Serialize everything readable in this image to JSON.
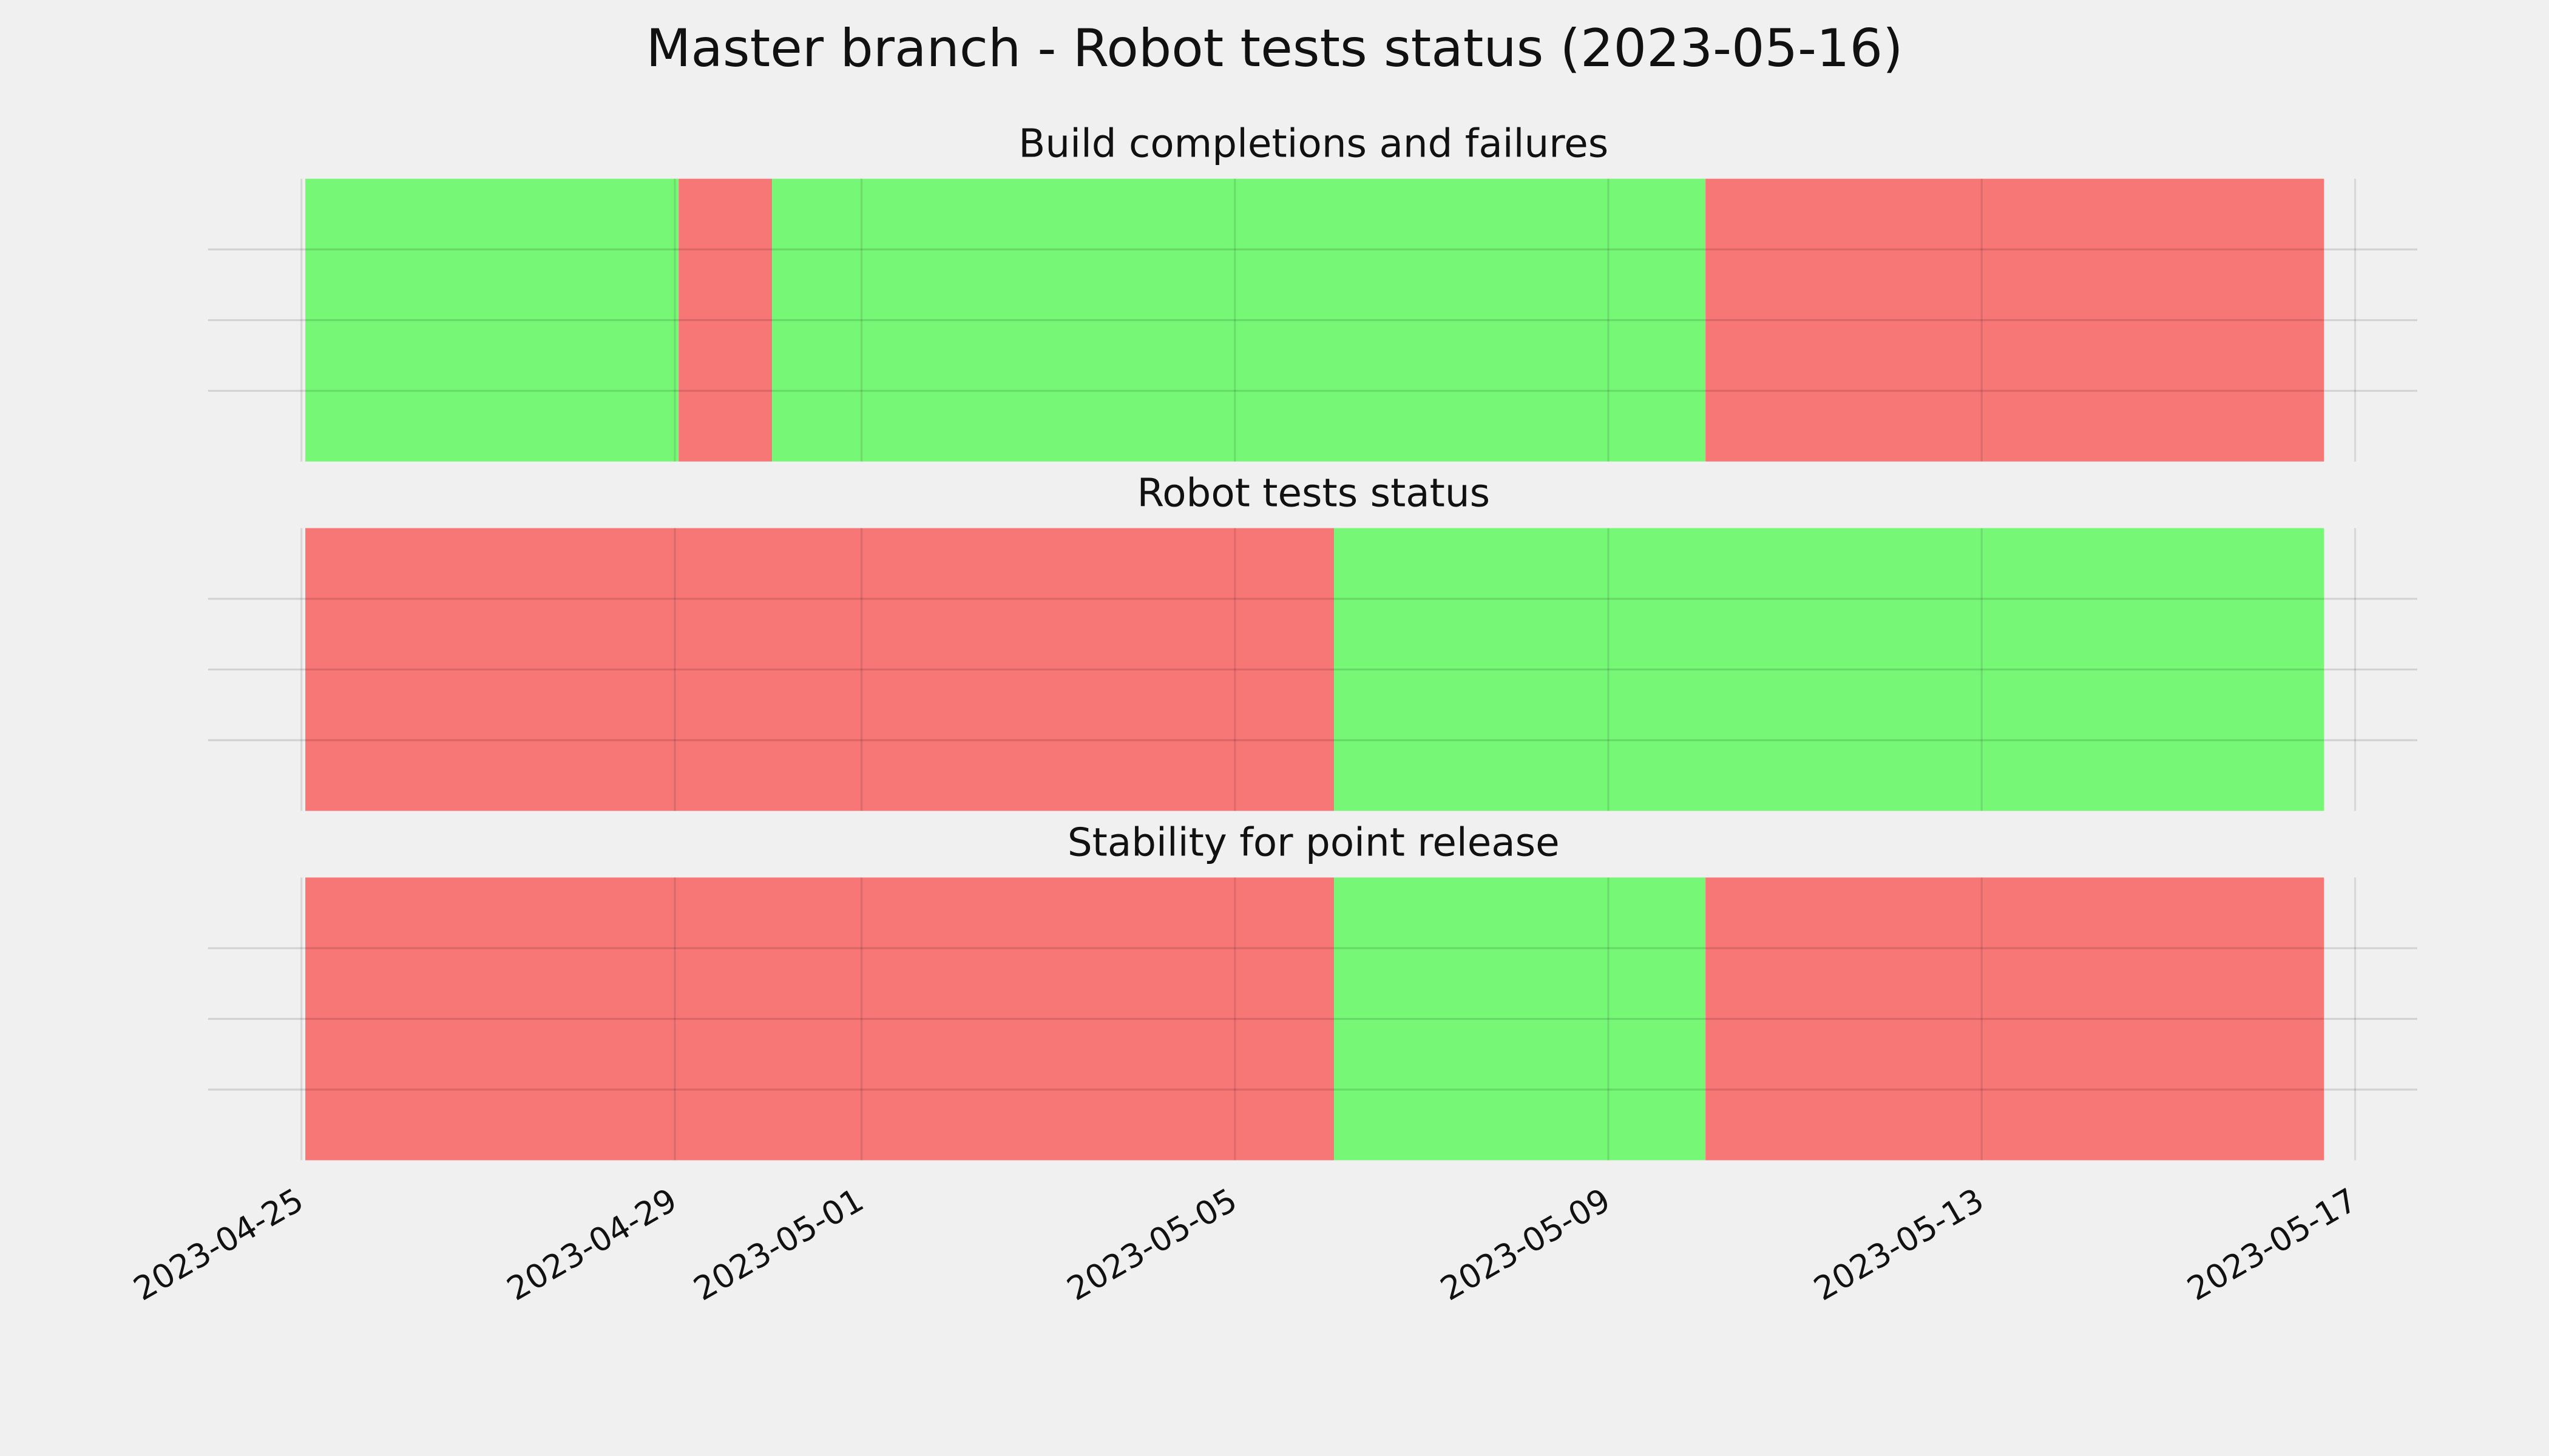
{
  "chart_data": {
    "type": "timeline",
    "title": "Master branch - Robot tests status (2023-05-16)",
    "xlim": [
      "2023-04-24T00:00",
      "2023-05-17T16:00"
    ],
    "xticks": [
      "2023-04-25",
      "2023-04-29",
      "2023-05-01",
      "2023-05-05",
      "2023-05-09",
      "2023-05-13",
      "2023-05-17"
    ],
    "grid": true,
    "panels": [
      {
        "title": "Build completions and failures",
        "spans": [
          {
            "start": "2023-04-25T01:00",
            "end": "2023-04-29T01:00",
            "color": "#76f776"
          },
          {
            "start": "2023-04-29T01:00",
            "end": "2023-04-30T01:00",
            "color": "#f77676"
          },
          {
            "start": "2023-04-30T01:00",
            "end": "2023-05-10T01:00",
            "color": "#76f776"
          },
          {
            "start": "2023-05-10T01:00",
            "end": "2023-05-16T16:00",
            "color": "#f77676"
          }
        ]
      },
      {
        "title": "Robot tests status",
        "spans": [
          {
            "start": "2023-04-25T01:00",
            "end": "2023-05-06T01:30",
            "color": "#f77676"
          },
          {
            "start": "2023-05-06T01:30",
            "end": "2023-05-16T16:00",
            "color": "#76f776"
          }
        ]
      },
      {
        "title": "Stability for point release",
        "spans": [
          {
            "start": "2023-04-25T01:00",
            "end": "2023-05-06T01:30",
            "color": "#f77676"
          },
          {
            "start": "2023-05-06T01:30",
            "end": "2023-05-10T01:00",
            "color": "#76f776"
          },
          {
            "start": "2023-05-10T01:00",
            "end": "2023-05-16T16:00",
            "color": "#f77676"
          }
        ]
      }
    ]
  }
}
